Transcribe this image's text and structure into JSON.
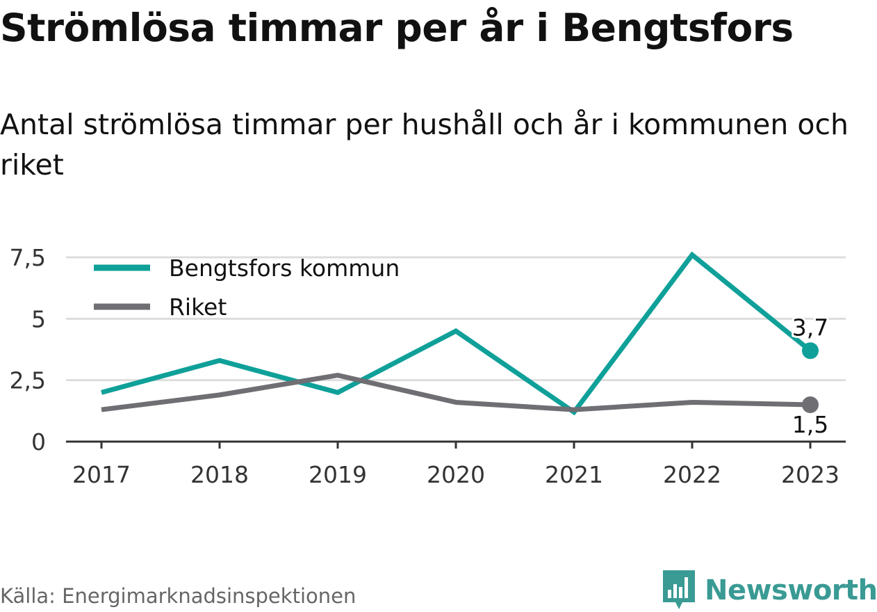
{
  "title": "Strömlösa timmar per år i Bengtsfors",
  "subtitle": "Antal strömlösa timmar per hushåll och år i kommunen och riket",
  "source": "Källa: Energimarknadsinspektionen",
  "brand": {
    "name": "Newsworthy",
    "icon": "newsworthy-logo-icon"
  },
  "colors": {
    "bengtsfors": "#0fa099",
    "riket": "#6f6e73",
    "grid": "#dddddd",
    "axis": "#333333"
  },
  "chart_data": {
    "type": "line",
    "categories": [
      "2017",
      "2018",
      "2019",
      "2020",
      "2021",
      "2022",
      "2023"
    ],
    "series": [
      {
        "name": "Bengtsfors kommun",
        "values": [
          2.0,
          3.3,
          2.0,
          4.5,
          1.2,
          7.6,
          3.7
        ],
        "end_label": "3,7"
      },
      {
        "name": "Riket",
        "values": [
          1.3,
          1.9,
          2.7,
          1.6,
          1.3,
          1.6,
          1.5
        ],
        "end_label": "1,5"
      }
    ],
    "ylim": [
      0,
      7.5
    ],
    "yticks": [
      0,
      2.5,
      5,
      7.5
    ],
    "ytick_labels": [
      "0",
      "2,5",
      "5",
      "7,5"
    ],
    "grid": true,
    "legend_position": "top-left"
  }
}
